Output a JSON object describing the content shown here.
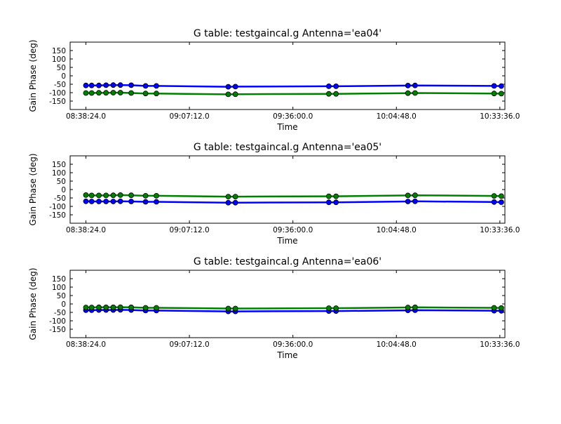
{
  "chart_data": [
    {
      "type": "line",
      "title": "G table: testgaincal.g      Antenna='ea04'",
      "xlabel": "Time",
      "ylabel": "Gain Phase (deg)",
      "ylim": [
        -200,
        200
      ],
      "xlim": [
        "08:34:00",
        "10:35:00"
      ],
      "yticks": [
        -150,
        -100,
        -50,
        0,
        50,
        100,
        150
      ],
      "xticks": [
        "08:38:24.0",
        "09:07:12.0",
        "09:36:00.0",
        "10:04:48.0",
        "10:33:36.0"
      ],
      "grid": false,
      "series": [
        {
          "color": "#0000ff",
          "x": [
            "08:38:24",
            "08:40:00",
            "08:42:00",
            "08:44:00",
            "08:46:00",
            "08:48:00",
            "08:51:00",
            "08:55:00",
            "08:58:00",
            "09:18:00",
            "09:20:00",
            "09:46:00",
            "09:48:00",
            "10:08:00",
            "10:10:00",
            "10:32:00",
            "10:34:00"
          ],
          "y": [
            -57,
            -57,
            -57,
            -56,
            -55,
            -55,
            -56,
            -60,
            -60,
            -65,
            -64,
            -62,
            -62,
            -58,
            -57,
            -60,
            -61
          ]
        },
        {
          "color": "#008000",
          "x": [
            "08:38:24",
            "08:40:00",
            "08:42:00",
            "08:44:00",
            "08:46:00",
            "08:48:00",
            "08:51:00",
            "08:55:00",
            "08:58:00",
            "09:18:00",
            "09:20:00",
            "09:46:00",
            "09:48:00",
            "10:08:00",
            "10:10:00",
            "10:32:00",
            "10:34:00"
          ],
          "y": [
            -102,
            -102,
            -101,
            -101,
            -100,
            -100,
            -102,
            -105,
            -105,
            -110,
            -109,
            -107,
            -107,
            -103,
            -102,
            -105,
            -106
          ]
        }
      ]
    },
    {
      "type": "line",
      "title": "G table: testgaincal.g      Antenna='ea05'",
      "xlabel": "Time",
      "ylabel": "Gain Phase (deg)",
      "ylim": [
        -200,
        200
      ],
      "xlim": [
        "08:34:00",
        "10:35:00"
      ],
      "yticks": [
        -150,
        -100,
        -50,
        0,
        50,
        100,
        150
      ],
      "xticks": [
        "08:38:24.0",
        "09:07:12.0",
        "09:36:00.0",
        "10:04:48.0",
        "10:33:36.0"
      ],
      "grid": false,
      "series": [
        {
          "color": "#0000ff",
          "x": [
            "08:38:24",
            "08:40:00",
            "08:42:00",
            "08:44:00",
            "08:46:00",
            "08:48:00",
            "08:51:00",
            "08:55:00",
            "08:58:00",
            "09:18:00",
            "09:20:00",
            "09:46:00",
            "09:48:00",
            "10:08:00",
            "10:10:00",
            "10:32:00",
            "10:34:00"
          ],
          "y": [
            -70,
            -71,
            -71,
            -71,
            -71,
            -70,
            -71,
            -73,
            -73,
            -78,
            -78,
            -76,
            -76,
            -71,
            -70,
            -74,
            -75
          ]
        },
        {
          "color": "#008000",
          "x": [
            "08:38:24",
            "08:40:00",
            "08:42:00",
            "08:44:00",
            "08:46:00",
            "08:48:00",
            "08:51:00",
            "08:55:00",
            "08:58:00",
            "09:18:00",
            "09:20:00",
            "09:46:00",
            "09:48:00",
            "10:08:00",
            "10:10:00",
            "10:32:00",
            "10:34:00"
          ],
          "y": [
            -33,
            -35,
            -35,
            -35,
            -34,
            -33,
            -34,
            -37,
            -37,
            -42,
            -42,
            -40,
            -40,
            -35,
            -34,
            -38,
            -39
          ]
        }
      ]
    },
    {
      "type": "line",
      "title": "G table: testgaincal.g      Antenna='ea06'",
      "xlabel": "Time",
      "ylabel": "Gain Phase (deg)",
      "ylim": [
        -200,
        200
      ],
      "xlim": [
        "08:34:00",
        "10:35:00"
      ],
      "yticks": [
        -150,
        -100,
        -50,
        0,
        50,
        100,
        150
      ],
      "xticks": [
        "08:38:24.0",
        "09:07:12.0",
        "09:36:00.0",
        "10:04:48.0",
        "10:33:36.0"
      ],
      "grid": false,
      "series": [
        {
          "color": "#0000ff",
          "x": [
            "08:38:24",
            "08:40:00",
            "08:42:00",
            "08:44:00",
            "08:46:00",
            "08:48:00",
            "08:51:00",
            "08:55:00",
            "08:58:00",
            "09:18:00",
            "09:20:00",
            "09:46:00",
            "09:48:00",
            "10:08:00",
            "10:10:00",
            "10:32:00",
            "10:34:00"
          ],
          "y": [
            -37,
            -37,
            -36,
            -36,
            -36,
            -35,
            -36,
            -39,
            -39,
            -44,
            -44,
            -42,
            -42,
            -38,
            -37,
            -40,
            -41
          ]
        },
        {
          "color": "#008000",
          "x": [
            "08:38:24",
            "08:40:00",
            "08:42:00",
            "08:44:00",
            "08:46:00",
            "08:48:00",
            "08:51:00",
            "08:55:00",
            "08:58:00",
            "09:18:00",
            "09:20:00",
            "09:46:00",
            "09:48:00",
            "10:08:00",
            "10:10:00",
            "10:32:00",
            "10:34:00"
          ],
          "y": [
            -21,
            -21,
            -20,
            -20,
            -20,
            -19,
            -20,
            -23,
            -23,
            -27,
            -27,
            -25,
            -25,
            -21,
            -20,
            -23,
            -24
          ]
        }
      ]
    }
  ]
}
